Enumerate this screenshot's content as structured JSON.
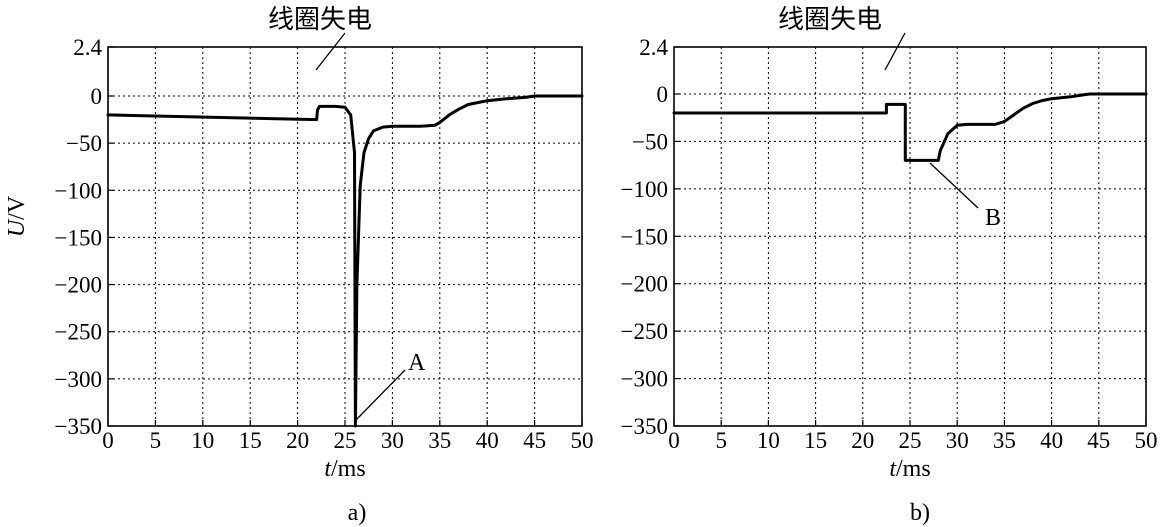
{
  "chart_data": [
    {
      "type": "line",
      "panel_label": "a)",
      "xlabel_italic": "t",
      "xlabel_unit": "/ms",
      "ylabel_italic": "U",
      "ylabel_unit": "/V",
      "xlim": [
        0,
        50
      ],
      "ylim": [
        -350,
        2.4
      ],
      "xticks": [
        0,
        5,
        10,
        15,
        20,
        25,
        30,
        35,
        40,
        45,
        50
      ],
      "yticks": [
        2.4,
        0,
        -50,
        -100,
        -150,
        -200,
        -250,
        -300,
        -350
      ],
      "ytick_labels": [
        "2.4",
        "0",
        "−50",
        "−100",
        "−150",
        "−200",
        "−250",
        "−300",
        "−350"
      ],
      "grid": true,
      "series": [
        {
          "x": [
            0,
            22,
            22.1,
            22.3,
            23,
            24,
            25,
            25.6,
            26,
            26.1,
            26.25,
            26.6,
            27,
            27.5,
            28,
            29,
            30,
            31,
            33,
            34.5,
            35,
            36,
            37,
            38,
            39,
            40,
            42,
            44,
            45,
            46,
            50
          ],
          "y": [
            -20,
            -25,
            -15,
            -11,
            -11,
            -11,
            -12,
            -20,
            -60,
            -350,
            -200,
            -95,
            -60,
            -45,
            -37,
            -33,
            -32,
            -32,
            -32,
            -31,
            -28,
            -20,
            -14,
            -9,
            -7,
            -5,
            -3,
            -1.5,
            0,
            0,
            0
          ]
        }
      ],
      "annotations": [
        {
          "text": "线圈失电",
          "x": 22,
          "y": -25
        },
        {
          "text": "A",
          "x": 26.1,
          "y": -350
        }
      ]
    },
    {
      "type": "line",
      "panel_label": "b)",
      "xlabel_italic": "t",
      "xlabel_unit": "/ms",
      "xlim": [
        0,
        50
      ],
      "ylim": [
        -350,
        2.4
      ],
      "xticks": [
        0,
        5,
        10,
        15,
        20,
        25,
        30,
        35,
        40,
        45,
        50
      ],
      "yticks": [
        2.4,
        0,
        -50,
        -100,
        -150,
        -200,
        -250,
        -300,
        -350
      ],
      "ytick_labels": [
        "2.4",
        "0",
        "−50",
        "−100",
        "−150",
        "−200",
        "−250",
        "−300",
        "−350"
      ],
      "grid": true,
      "series": [
        {
          "x": [
            0,
            22.5,
            22.5,
            24.5,
            24.5,
            28,
            28.2,
            29,
            30,
            31,
            33,
            34,
            35,
            36,
            37,
            38,
            39,
            40,
            42,
            43,
            44,
            45,
            50
          ],
          "y": [
            -20,
            -20,
            -11,
            -11,
            -70,
            -70,
            -60,
            -42,
            -33,
            -32,
            -32,
            -32,
            -29,
            -22,
            -15,
            -10,
            -7,
            -5,
            -3,
            -1.5,
            0,
            0,
            0
          ]
        }
      ],
      "annotations": [
        {
          "text": "线圈失电",
          "x": 22.5,
          "y": -20
        },
        {
          "text": "B",
          "x": 27,
          "y": -70
        }
      ]
    }
  ]
}
